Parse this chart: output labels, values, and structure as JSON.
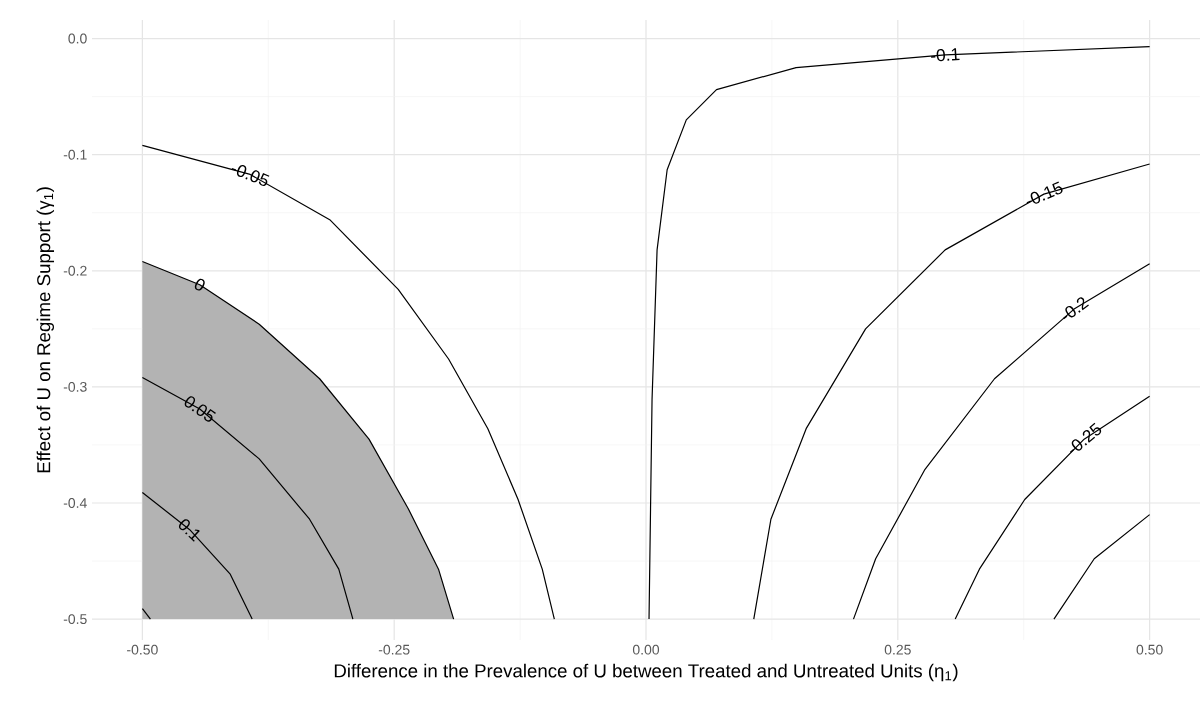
{
  "chart_data": {
    "type": "line",
    "xlabel": "Difference in the Prevalence of U between Treated and Untreated Units (η$_{1}$)",
    "ylabel": "Effect of U on Regime Support (γ$_{1}$)",
    "xlim": [
      -0.55,
      0.55
    ],
    "ylim": [
      -0.518,
      0.016
    ],
    "xticks": [
      {
        "value": -0.5,
        "label": "-0.50"
      },
      {
        "value": -0.25,
        "label": "-0.25"
      },
      {
        "value": 0,
        "label": "0.00"
      },
      {
        "value": 0.25,
        "label": "0.25"
      },
      {
        "value": 0.5,
        "label": "0.50"
      }
    ],
    "yticks": [
      {
        "value": 0,
        "label": "0.0"
      },
      -0.1,
      -0.2,
      -0.3,
      -0.4,
      -0.5
    ],
    "grid": true,
    "series": [
      {
        "type": "area",
        "name": "0",
        "color": "#b3b3b3",
        "x": [
          -0.5,
          -0.443,
          -0.384,
          -0.324,
          -0.275,
          -0.236,
          -0.206,
          -0.191,
          -0.5
        ],
        "values": [
          -0.192,
          -0.212,
          -0.246,
          -0.293,
          -0.345,
          -0.405,
          -0.457,
          -0.5,
          -0.5
        ]
      },
      {
        "name": "-0.05",
        "color": "#000000",
        "x": [
          -0.5,
          -0.393,
          -0.314,
          -0.246,
          -0.196,
          -0.157,
          -0.127,
          -0.103,
          -0.091
        ],
        "values": [
          -0.092,
          -0.117,
          -0.156,
          -0.216,
          -0.276,
          -0.336,
          -0.397,
          -0.457,
          -0.5
        ]
      },
      {
        "name": "-0.1",
        "color": "#000000",
        "x": [
          0.5,
          0.297,
          0.149,
          0.07,
          0.04,
          0.021,
          0.011,
          0.006,
          0.003
        ],
        "values": [
          -0.007,
          -0.014,
          -0.025,
          -0.044,
          -0.07,
          -0.113,
          -0.182,
          -0.311,
          -0.5
        ]
      },
      {
        "name": "-0.15",
        "color": "#000000",
        "x": [
          0.5,
          0.395,
          0.297,
          0.218,
          0.159,
          0.124,
          0.107
        ],
        "values": [
          -0.108,
          -0.134,
          -0.182,
          -0.25,
          -0.336,
          -0.414,
          -0.5
        ]
      },
      {
        "name": "-0.2",
        "color": "#000000",
        "x": [
          0.5,
          0.425,
          0.346,
          0.277,
          0.228,
          0.206
        ],
        "values": [
          -0.194,
          -0.233,
          -0.293,
          -0.371,
          -0.448,
          -0.5
        ]
      },
      {
        "name": "-0.25",
        "color": "#000000",
        "x": [
          0.5,
          0.435,
          0.376,
          0.331,
          0.307
        ],
        "values": [
          -0.308,
          -0.345,
          -0.397,
          -0.457,
          -0.5
        ]
      },
      {
        "color": "#000000",
        "x": [
          0.5,
          0.445,
          0.405
        ],
        "values": [
          -0.41,
          -0.448,
          -0.5
        ]
      },
      {
        "name": "0.05",
        "color": "#000000",
        "x": [
          -0.5,
          -0.443,
          -0.384,
          -0.334,
          -0.305,
          -0.291
        ],
        "values": [
          -0.292,
          -0.319,
          -0.362,
          -0.414,
          -0.457,
          -0.5
        ]
      },
      {
        "name": "0.1",
        "color": "#000000",
        "x": [
          -0.5,
          -0.453,
          -0.413,
          -0.391
        ],
        "values": [
          -0.391,
          -0.423,
          -0.461,
          -0.5
        ]
      },
      {
        "color": "#000000",
        "x": [
          -0.5,
          -0.492
        ],
        "values": [
          -0.491,
          -0.5
        ]
      }
    ]
  }
}
